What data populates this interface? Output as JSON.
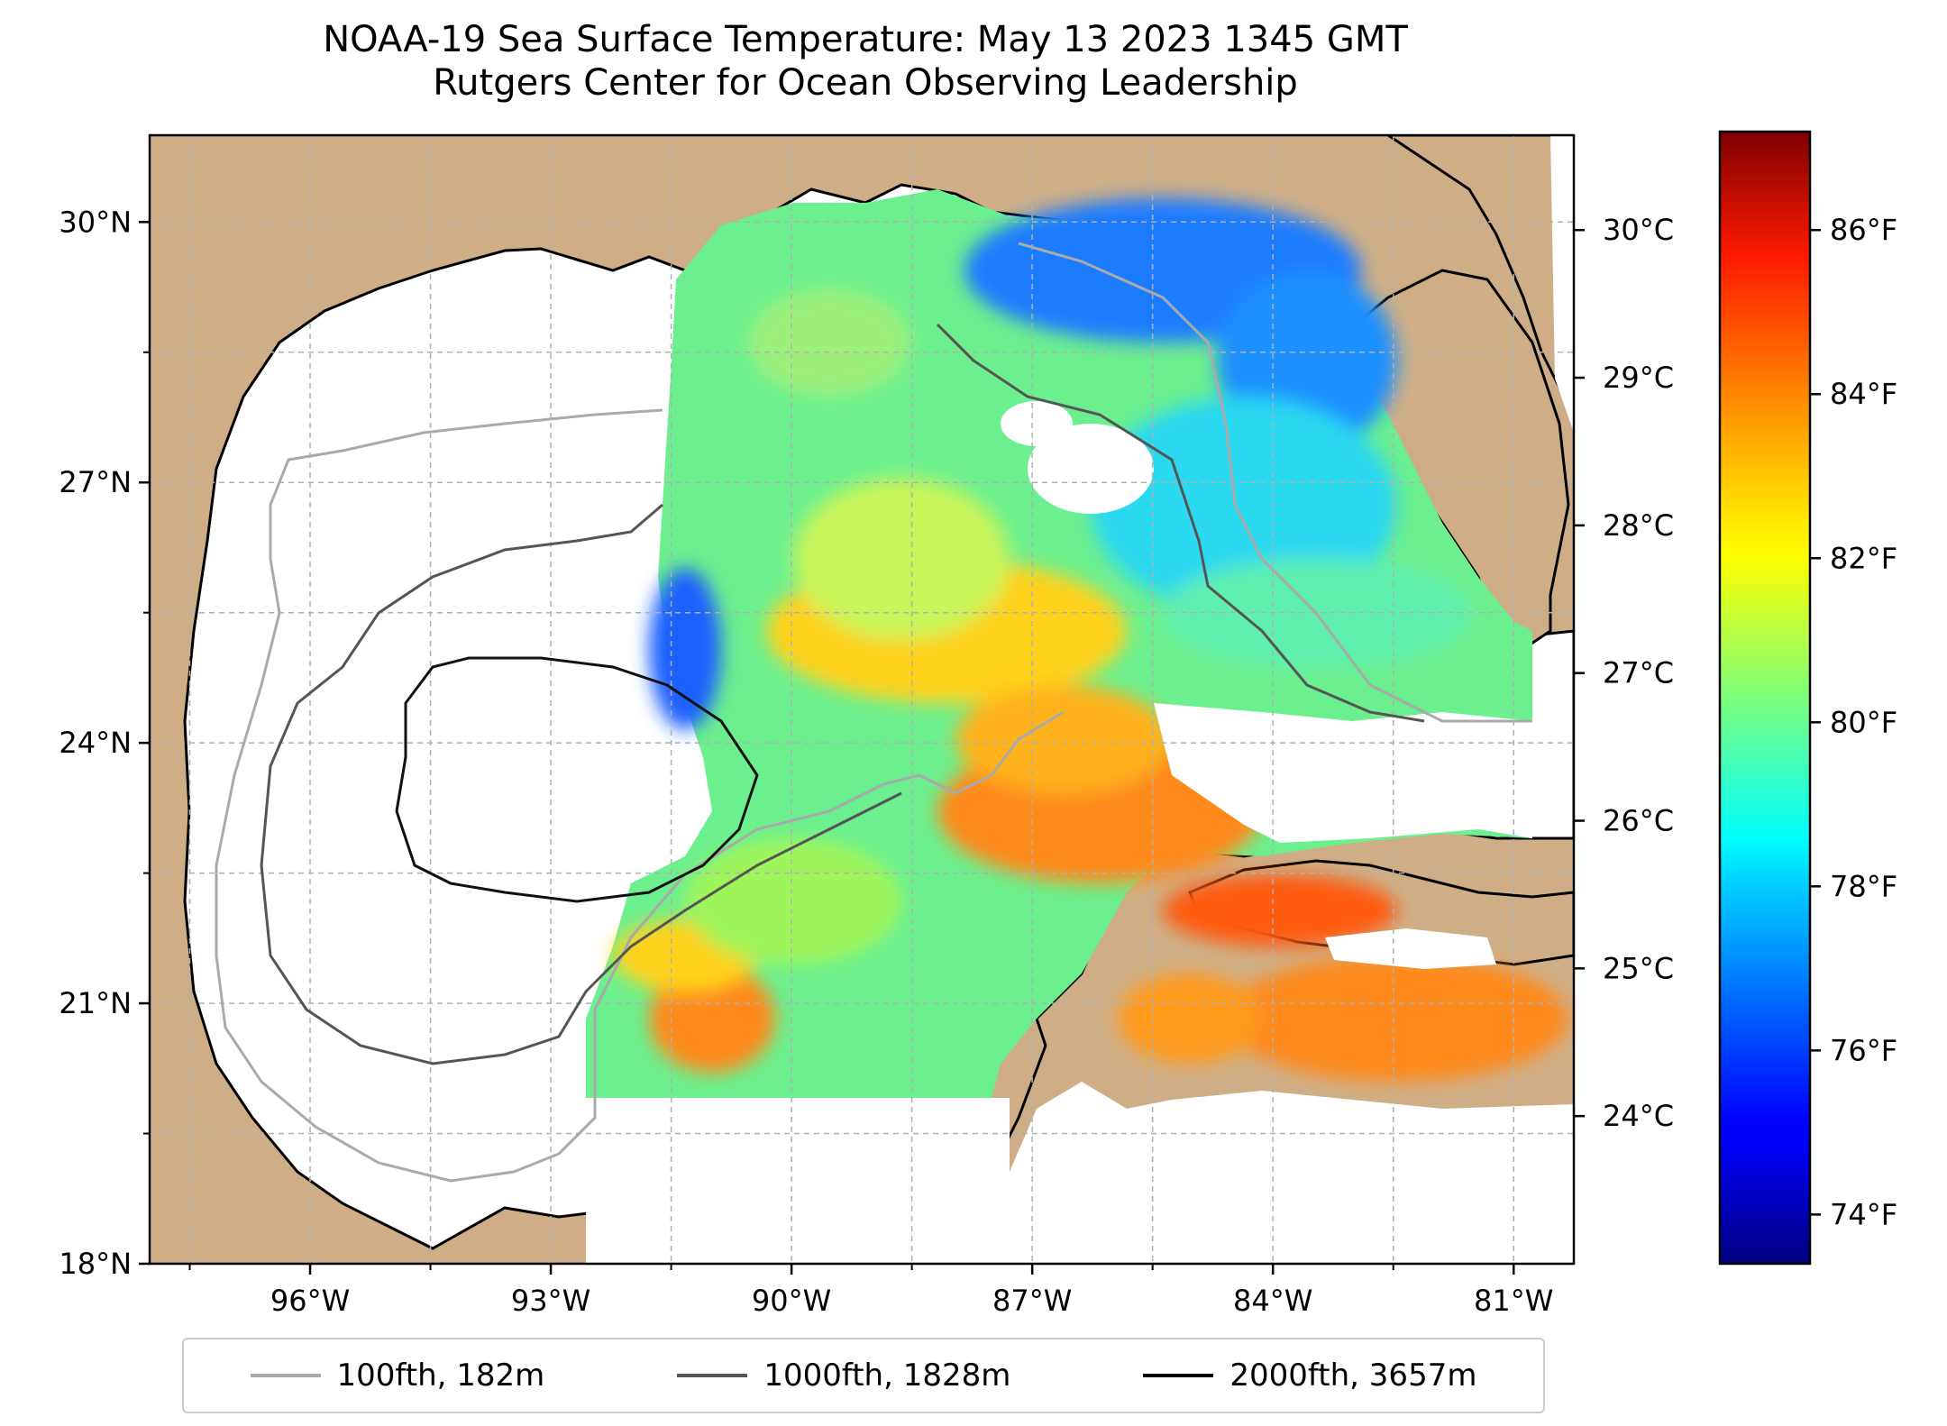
{
  "title": {
    "line1": "NOAA-19 Sea Surface Temperature: May 13 2023 1345 GMT",
    "line2": "Rutgers Center for Ocean Observing Leadership"
  },
  "map": {
    "lon_range": [
      -98,
      -80.25
    ],
    "lat_range": [
      18,
      31
    ],
    "x_ticks": [
      "96°W",
      "93°W",
      "90°W",
      "87°W",
      "84°W",
      "81°W"
    ],
    "y_ticks": [
      "30°N",
      "27°N",
      "24°N",
      "21°N",
      "18°N"
    ],
    "colors": {
      "land": "#cfae87",
      "no_data": "#ffffff",
      "gridline": "#b0b0b0",
      "lakes": "#9db7e0"
    }
  },
  "colorbar": {
    "colormap": "jet",
    "fahrenheit_range": [
      73.4,
      87.2
    ],
    "celsius_labels": [
      "30°C",
      "29°C",
      "28°C",
      "27°C",
      "26°C",
      "25°C",
      "24°C"
    ],
    "fahrenheit_labels": [
      "86°F",
      "84°F",
      "82°F",
      "80°F",
      "78°F",
      "76°F",
      "74°F"
    ]
  },
  "legend": {
    "items": [
      {
        "label": "100fth, 182m",
        "color": "#aaaaaa"
      },
      {
        "label": "1000fth, 1828m",
        "color": "#555555"
      },
      {
        "label": "2000fth, 3657m",
        "color": "#000000"
      }
    ]
  }
}
